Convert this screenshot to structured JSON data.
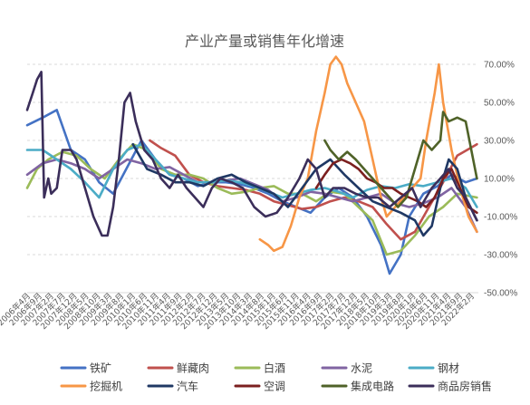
{
  "chart_data": {
    "type": "line",
    "title": "产业产量或销售年化增速",
    "xlabel": "",
    "ylabel": "",
    "ylim": [
      -0.5,
      0.7
    ],
    "yticks": [
      "70.00%",
      "50.00%",
      "30.00%",
      "10.00%",
      "-10.00%",
      "-30.00%",
      "-50.00%"
    ],
    "ytick_values": [
      0.7,
      0.5,
      0.3,
      0.1,
      -0.1,
      -0.3,
      -0.5
    ],
    "yaxis_position": "right",
    "grid": true,
    "legend_position": "bottom",
    "x_range": [
      2006.25,
      2022.25
    ],
    "xticks": [
      "2006年4月",
      "2006年9月",
      "2007年2月",
      "2007年7月",
      "2007年12月",
      "2008年5月",
      "2008年10月",
      "2009年3月",
      "2009年8月",
      "2010年1月",
      "2010年6月",
      "2010年11月",
      "2011年4月",
      "2011年9月",
      "2012年2月",
      "2012年7月",
      "2012年12月",
      "2013年5月",
      "2013年10月",
      "2014年3月",
      "2014年8月",
      "2015年1月",
      "2015年6月",
      "2015年11月",
      "2016年4月",
      "2016年9月",
      "2017年2月",
      "2017年7月",
      "2017年12月",
      "2018年5月",
      "2018年10月",
      "2019年3月",
      "2019年8月",
      "2020年1月",
      "2020年6月",
      "2020年11月",
      "2021年4月",
      "2021年9月",
      "2022年2月"
    ],
    "series": [
      {
        "name": "铁矿",
        "color": "#4472c4",
        "x": [
          2006.25,
          2006.8,
          2007.3,
          2007.8,
          2008.3,
          2008.8,
          2009.3,
          2009.8,
          2010.3,
          2010.8,
          2011.3,
          2011.8,
          2012.3,
          2012.8,
          2013.3,
          2013.8,
          2014.3,
          2014.8,
          2015.3,
          2015.8,
          2016.3,
          2016.8,
          2017.3,
          2017.8,
          2018.3,
          2018.8,
          2019.1,
          2019.5,
          2019.8,
          2020.3,
          2020.8,
          2021.3,
          2021.8,
          2022.2
        ],
        "y": [
          0.38,
          0.42,
          0.46,
          0.25,
          0.2,
          0.08,
          0.02,
          0.16,
          0.3,
          0.2,
          0.12,
          0.1,
          0.06,
          0.08,
          0.08,
          0.07,
          0.05,
          0.02,
          -0.02,
          -0.05,
          -0.08,
          0.0,
          0.05,
          0.0,
          -0.1,
          -0.25,
          -0.4,
          -0.3,
          -0.1,
          0.02,
          0.06,
          0.12,
          0.08,
          0.1
        ]
      },
      {
        "name": "鲜藏肉",
        "color": "#c0504d",
        "x": [
          2010.6,
          2011.0,
          2011.5,
          2012.0,
          2012.5,
          2013.0,
          2013.5,
          2014.0,
          2014.5,
          2015.0,
          2015.5,
          2016.0,
          2016.5,
          2017.0,
          2017.5,
          2018.0,
          2018.5,
          2019.0,
          2019.5,
          2020.0,
          2020.5,
          2021.0,
          2021.5,
          2022.2
        ],
        "y": [
          0.3,
          0.26,
          0.22,
          0.12,
          0.08,
          0.06,
          0.05,
          0.04,
          0.02,
          -0.02,
          -0.04,
          -0.06,
          -0.05,
          -0.02,
          0.0,
          -0.02,
          -0.05,
          -0.14,
          -0.22,
          -0.18,
          -0.05,
          0.08,
          0.22,
          0.28
        ]
      },
      {
        "name": "白酒",
        "color": "#9bbb59",
        "x": [
          2006.25,
          2006.6,
          2007.0,
          2007.5,
          2008.0,
          2008.5,
          2009.0,
          2009.5,
          2010.0,
          2010.5,
          2011.0,
          2011.5,
          2012.0,
          2012.5,
          2013.0,
          2013.5,
          2014.0,
          2014.5,
          2015.0,
          2015.5,
          2016.0,
          2016.5,
          2017.0,
          2017.5,
          2018.0,
          2018.5,
          2019.0,
          2019.5,
          2020.0,
          2020.5,
          2021.0,
          2021.5,
          2022.2
        ],
        "y": [
          0.05,
          0.15,
          0.2,
          0.24,
          0.22,
          0.15,
          0.1,
          0.2,
          0.28,
          0.25,
          0.15,
          0.12,
          0.12,
          0.1,
          0.05,
          0.02,
          0.03,
          0.05,
          0.06,
          0.02,
          0.02,
          -0.02,
          0.03,
          0.02,
          -0.05,
          -0.12,
          -0.3,
          -0.28,
          -0.2,
          -0.1,
          -0.05,
          0.02,
          0.0
        ]
      },
      {
        "name": "水泥",
        "color": "#8064a2",
        "x": [
          2006.25,
          2006.8,
          2007.3,
          2007.8,
          2008.3,
          2008.8,
          2009.3,
          2009.8,
          2010.3,
          2010.8,
          2011.3,
          2011.8,
          2012.3,
          2012.8,
          2013.3,
          2013.8,
          2014.3,
          2014.8,
          2015.3,
          2015.8,
          2016.3,
          2016.8,
          2017.3,
          2017.8,
          2018.3,
          2018.8,
          2019.3,
          2019.8,
          2020.3,
          2020.8,
          2021.3,
          2021.8,
          2022.2
        ],
        "y": [
          0.12,
          0.18,
          0.2,
          0.18,
          0.15,
          0.1,
          0.15,
          0.2,
          0.18,
          0.15,
          0.16,
          0.12,
          0.08,
          0.08,
          0.09,
          0.1,
          0.07,
          0.04,
          -0.02,
          0.0,
          0.03,
          0.02,
          0.0,
          -0.02,
          0.0,
          0.02,
          -0.03,
          -0.05,
          -0.03,
          0.0,
          0.05,
          -0.05,
          -0.18
        ]
      },
      {
        "name": "钢材",
        "color": "#4bacc6",
        "x": [
          2006.25,
          2006.8,
          2007.3,
          2007.8,
          2008.3,
          2008.8,
          2009.3,
          2009.8,
          2010.3,
          2010.8,
          2011.3,
          2011.8,
          2012.3,
          2012.8,
          2013.3,
          2013.8,
          2014.3,
          2014.8,
          2015.3,
          2015.8,
          2016.3,
          2016.8,
          2017.3,
          2017.8,
          2018.3,
          2018.8,
          2019.3,
          2019.8,
          2020.3,
          2020.8,
          2021.3,
          2021.8,
          2022.2
        ],
        "y": [
          0.25,
          0.25,
          0.2,
          0.15,
          0.08,
          0.0,
          0.15,
          0.25,
          0.28,
          0.2,
          0.12,
          0.1,
          0.08,
          0.08,
          0.09,
          0.08,
          0.06,
          0.03,
          0.0,
          0.02,
          0.04,
          0.05,
          0.03,
          0.0,
          0.04,
          0.06,
          0.05,
          0.07,
          0.06,
          0.08,
          0.1,
          0.05,
          -0.05
        ]
      },
      {
        "name": "挖掘机",
        "color": "#f79646",
        "x": [
          2014.5,
          2014.8,
          2015.0,
          2015.3,
          2015.6,
          2015.9,
          2016.2,
          2016.5,
          2016.8,
          2017.0,
          2017.2,
          2017.4,
          2017.6,
          2017.9,
          2018.2,
          2018.5,
          2018.8,
          2019.0,
          2019.3,
          2019.6,
          2019.9,
          2020.2,
          2020.4,
          2020.7,
          2020.85,
          2021.0,
          2021.3,
          2021.6,
          2021.9,
          2022.2
        ],
        "y": [
          -0.22,
          -0.25,
          -0.28,
          -0.26,
          -0.15,
          0.0,
          0.1,
          0.35,
          0.55,
          0.7,
          0.74,
          0.7,
          0.6,
          0.5,
          0.4,
          0.2,
          0.0,
          -0.1,
          -0.05,
          0.0,
          0.05,
          0.1,
          0.3,
          0.55,
          0.7,
          0.5,
          0.25,
          0.05,
          -0.1,
          -0.18
        ]
      },
      {
        "name": "汽车",
        "color": "#1f3864",
        "x": [
          2010.0,
          2010.5,
          2011.0,
          2011.5,
          2012.0,
          2012.5,
          2013.0,
          2013.5,
          2014.0,
          2014.5,
          2015.0,
          2015.5,
          2016.0,
          2016.5,
          2017.0,
          2017.5,
          2018.0,
          2018.5,
          2019.0,
          2019.5,
          2020.0,
          2020.3,
          2020.6,
          2020.9,
          2021.2,
          2021.5,
          2021.8,
          2022.2
        ],
        "y": [
          0.28,
          0.15,
          0.12,
          0.08,
          0.08,
          0.06,
          0.1,
          0.12,
          0.08,
          0.05,
          0.02,
          -0.05,
          0.05,
          0.15,
          0.2,
          0.12,
          0.05,
          -0.02,
          -0.05,
          -0.08,
          -0.12,
          -0.2,
          -0.15,
          0.05,
          0.2,
          0.15,
          0.0,
          -0.12
        ]
      },
      {
        "name": "空调",
        "color": "#7b1f1f",
        "x": [
          2016.5,
          2016.8,
          2017.1,
          2017.4,
          2017.7,
          2018.0,
          2018.3,
          2018.6,
          2018.9,
          2019.2,
          2019.5,
          2019.8,
          2020.1,
          2020.4,
          2020.7,
          2021.0,
          2021.3,
          2021.6,
          2021.9,
          2022.2
        ],
        "y": [
          0.05,
          0.12,
          0.18,
          0.2,
          0.18,
          0.15,
          0.1,
          0.08,
          0.05,
          0.05,
          0.02,
          0.0,
          -0.02,
          -0.05,
          0.0,
          0.1,
          0.15,
          0.05,
          -0.05,
          -0.08
        ]
      },
      {
        "name": "集成电路",
        "color": "#4f6228",
        "x": [
          2016.8,
          2017.0,
          2017.3,
          2017.6,
          2017.9,
          2018.2,
          2018.5,
          2018.8,
          2019.1,
          2019.4,
          2019.7,
          2020.0,
          2020.3,
          2020.6,
          2020.9,
          2021.0,
          2021.2,
          2021.5,
          2021.8,
          2022.0,
          2022.2
        ],
        "y": [
          0.3,
          0.25,
          0.2,
          0.24,
          0.2,
          0.15,
          0.1,
          0.05,
          0.0,
          -0.05,
          0.0,
          0.15,
          0.3,
          0.25,
          0.3,
          0.45,
          0.4,
          0.42,
          0.4,
          0.25,
          0.1
        ]
      },
      {
        "name": "商品房销售",
        "color": "#3b2e5a",
        "x": [
          2006.25,
          2006.45,
          2006.6,
          2006.75,
          2006.85,
          2007.0,
          2007.1,
          2007.3,
          2007.5,
          2007.8,
          2008.0,
          2008.3,
          2008.6,
          2008.9,
          2009.1,
          2009.3,
          2009.5,
          2009.7,
          2009.9,
          2010.1,
          2010.4,
          2010.7,
          2011.0,
          2011.3,
          2011.6,
          2011.9,
          2012.2,
          2012.5,
          2012.8,
          2013.1,
          2013.5,
          2013.9,
          2014.3,
          2014.7,
          2015.1,
          2015.5,
          2015.9,
          2016.2,
          2016.5,
          2016.8,
          2017.1,
          2017.5,
          2017.9,
          2018.3,
          2018.7,
          2019.1,
          2019.5,
          2019.9,
          2020.2,
          2020.6,
          2020.9,
          2021.2,
          2021.5,
          2021.8,
          2022.2
        ],
        "y": [
          0.46,
          0.55,
          0.62,
          0.66,
          0.0,
          0.1,
          0.02,
          0.05,
          0.25,
          0.25,
          0.2,
          0.05,
          -0.1,
          -0.2,
          -0.2,
          -0.05,
          0.2,
          0.5,
          0.55,
          0.4,
          0.25,
          0.2,
          0.1,
          0.05,
          0.12,
          0.05,
          0.0,
          -0.05,
          0.05,
          0.1,
          0.08,
          0.05,
          -0.05,
          -0.1,
          -0.08,
          0.0,
          0.1,
          0.2,
          0.15,
          0.0,
          0.05,
          0.05,
          0.02,
          0.0,
          0.0,
          -0.05,
          0.0,
          0.05,
          -0.05,
          0.05,
          0.1,
          0.15,
          0.05,
          0.0,
          -0.12
        ]
      }
    ]
  }
}
